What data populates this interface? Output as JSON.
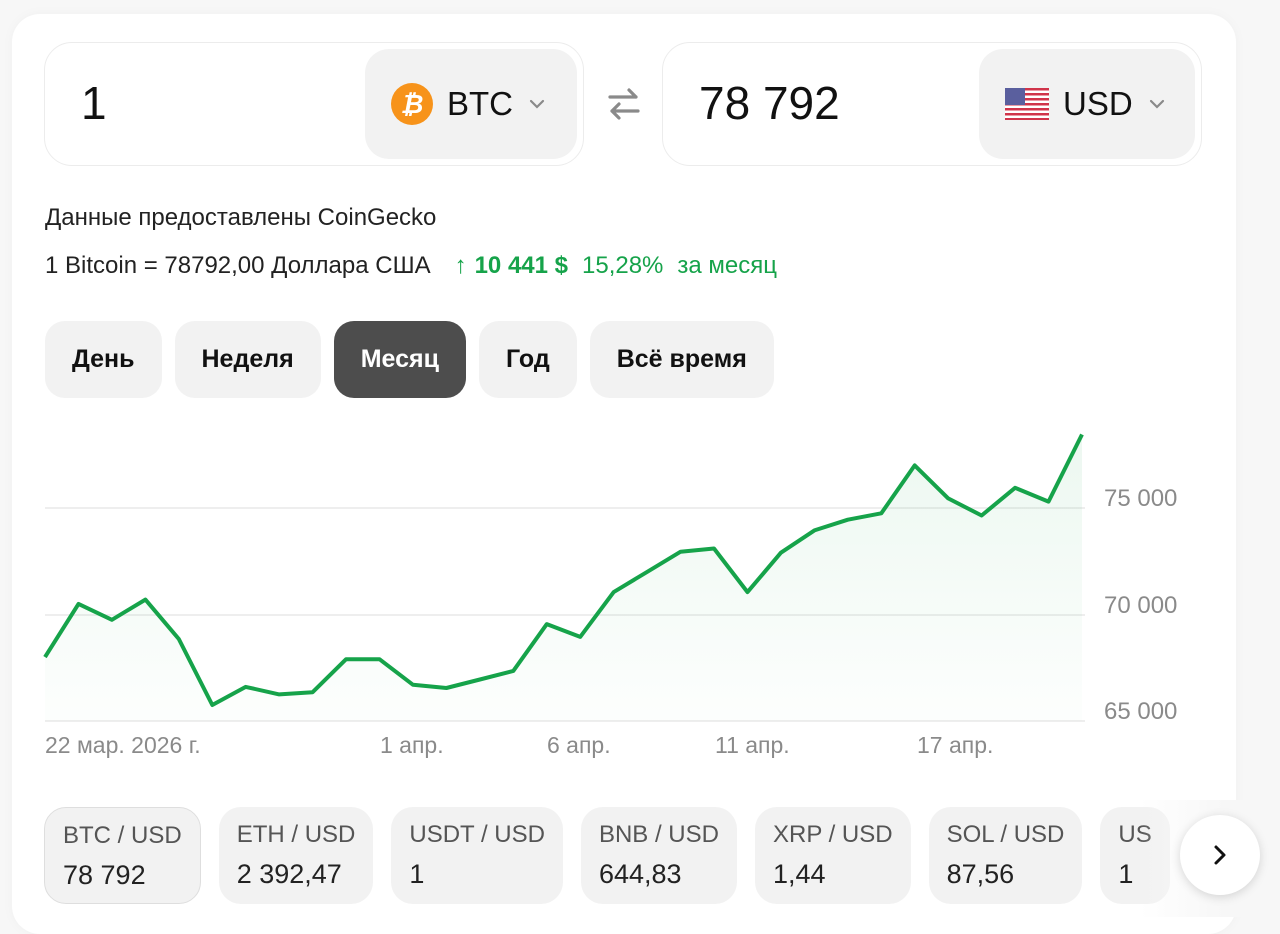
{
  "converter": {
    "from": {
      "amount": "1",
      "currency": "BTC",
      "icon": "bitcoin-icon"
    },
    "to": {
      "amount": "78 792",
      "currency": "USD",
      "icon": "us-flag-icon"
    },
    "swap_icon": "swap-arrows-icon"
  },
  "info": {
    "source": "Данные предоставлены CoinGecko",
    "rate": "1 Bitcoin = 78792,00 Доллара США",
    "change_arrow": "↑",
    "change_abs": "10 441 $",
    "change_pct": "15,28%",
    "change_period": "за месяц",
    "change_color": "#16a34a"
  },
  "periods": [
    {
      "label": "День",
      "active": false
    },
    {
      "label": "Неделя",
      "active": false
    },
    {
      "label": "Месяц",
      "active": true
    },
    {
      "label": "Год",
      "active": false
    },
    {
      "label": "Всё время",
      "active": false
    }
  ],
  "chart_data": {
    "type": "area",
    "title": "",
    "xlabel": "",
    "ylabel": "",
    "ylim": [
      65000,
      79000
    ],
    "grid": true,
    "legend": "none",
    "line_color": "#16a34a",
    "y_ticks": [
      "75 000",
      "70 000",
      "65 000"
    ],
    "x_ticks": [
      "22 мар. 2026 г.",
      "1 апр.",
      "6 апр.",
      "11 апр.",
      "17 апр."
    ],
    "series": [
      {
        "name": "BTC / USD",
        "values": [
          68000,
          70500,
          69750,
          70700,
          68850,
          65750,
          66600,
          66250,
          66350,
          67900,
          67900,
          66700,
          66550,
          66950,
          67350,
          69550,
          68950,
          71050,
          72000,
          72950,
          73100,
          71050,
          72900,
          73950,
          74450,
          74750,
          77000,
          75450,
          74650,
          75950,
          75300,
          78450
        ]
      }
    ]
  },
  "pairs": [
    {
      "name": "BTC / USD",
      "value": "78 792",
      "active": true
    },
    {
      "name": "ETH / USD",
      "value": "2 392,47",
      "active": false
    },
    {
      "name": "USDT / USD",
      "value": "1",
      "active": false
    },
    {
      "name": "BNB / USD",
      "value": "644,83",
      "active": false
    },
    {
      "name": "XRP / USD",
      "value": "1,44",
      "active": false
    },
    {
      "name": "SOL / USD",
      "value": "87,56",
      "active": false
    },
    {
      "name": "US",
      "value": "1",
      "active": false
    }
  ],
  "next_button_icon": "chevron-right-icon"
}
